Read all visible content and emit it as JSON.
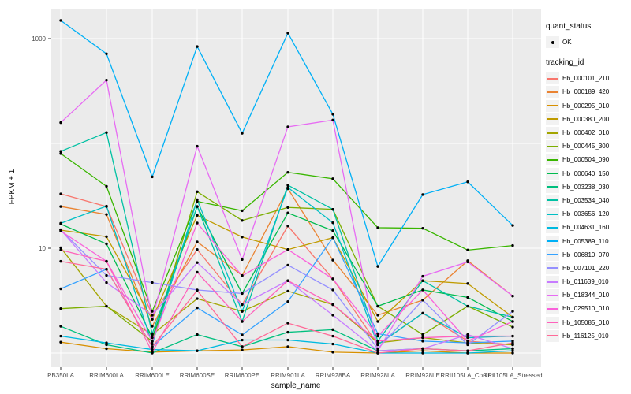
{
  "figure": {
    "panel_background": "#EBEBEB",
    "gridline_color": "#FFFFFF",
    "tick_color": "#333333",
    "axis_text_color": "#4D4D4D",
    "point_color": "#000000"
  },
  "y_axis": {
    "title": "FPKM + 1",
    "ticks": [
      {
        "label": "1000",
        "value": 1000
      },
      {
        "label": "10",
        "value": 10
      }
    ]
  },
  "x_axis": {
    "title": "sample_name"
  },
  "legend": {
    "quant_status": {
      "title": "quant_status",
      "items": [
        {
          "label": "OK",
          "symbol": "black-point"
        }
      ]
    },
    "tracking_id_title": "tracking_id"
  },
  "chart_data": {
    "type": "line",
    "title": "",
    "xlabel": "sample_name",
    "ylabel": "FPKM + 1",
    "yscale": "log10",
    "ybreaks": [
      10,
      1000
    ],
    "ylim": [
      1,
      1600
    ],
    "grid": true,
    "legend_position": "right",
    "point_marker": "small black point (quant_status = OK)",
    "categories": [
      "PB350LA",
      "RRIM600LA",
      "RRIM600LE",
      "RRIM600SE",
      "RRIM600PE",
      "RRIM901LA",
      "RRIM928BA",
      "RRIM928LA",
      "RRIM928LE",
      "RRII105LA_Control",
      "RRII105LA_Stressed"
    ],
    "series": [
      {
        "name": "Hb_000101_210",
        "color": "#F8766D",
        "values": [
          33,
          25,
          2.3,
          9.7,
          2.9,
          16.3,
          5.1,
          1.2,
          2.4,
          1.3,
          1.2
        ]
      },
      {
        "name": "Hb_000189_420",
        "color": "#EA8331",
        "values": [
          25,
          21,
          1.8,
          11.5,
          5.5,
          37,
          7.7,
          2.3,
          3.2,
          7.6,
          3.5
        ]
      },
      {
        "name": "Hb_000295_010",
        "color": "#D89000",
        "values": [
          1.27,
          1.1,
          1.02,
          1.05,
          1.07,
          1.15,
          1.02,
          1.0,
          1.05,
          1.0,
          1.0
        ]
      },
      {
        "name": "Hb_000380_200",
        "color": "#C09B00",
        "values": [
          14.9,
          12.9,
          2.1,
          20.6,
          12.8,
          9.7,
          12.6,
          2.0,
          4.9,
          4.6,
          2.2
        ]
      },
      {
        "name": "Hb_000402_010",
        "color": "#A3A500",
        "values": [
          10.1,
          2.8,
          1.5,
          3.3,
          2.5,
          3.9,
          2.9,
          1.25,
          1.4,
          1.25,
          1.2
        ]
      },
      {
        "name": "Hb_000445_300",
        "color": "#7CAE00",
        "values": [
          2.65,
          2.8,
          1.29,
          34.6,
          18.4,
          24.5,
          23.5,
          2.8,
          1.5,
          2.8,
          1.77
        ]
      },
      {
        "name": "Hb_000504_090",
        "color": "#39B600",
        "values": [
          80,
          39,
          2.5,
          28,
          22.8,
          53,
          46,
          15.7,
          15.5,
          9.6,
          10.6
        ]
      },
      {
        "name": "Hb_000640_150",
        "color": "#00BB4E",
        "values": [
          17,
          11,
          1.4,
          25,
          3.7,
          21.7,
          14.7,
          2.8,
          4.0,
          3.4,
          2.0
        ]
      },
      {
        "name": "Hb_003238_030",
        "color": "#00BF7D",
        "values": [
          1.8,
          1.2,
          1.0,
          1.5,
          1.15,
          1.58,
          1.67,
          1.05,
          1.1,
          1.05,
          1.1
        ]
      },
      {
        "name": "Hb_003534_040",
        "color": "#00C1A3",
        "values": [
          84,
          127,
          1.53,
          25,
          2.0,
          40,
          23.5,
          1.3,
          4.9,
          2.8,
          2.2
        ]
      },
      {
        "name": "Hb_003656_120",
        "color": "#00BFC4",
        "values": [
          17.3,
          25.2,
          1.22,
          29,
          2.5,
          38,
          17.5,
          1.2,
          2.4,
          1.4,
          1.45
        ]
      },
      {
        "name": "Hb_004631_160",
        "color": "#00BAE0",
        "values": [
          1.45,
          1.25,
          1.08,
          1.05,
          1.33,
          1.33,
          1.22,
          1.0,
          1.0,
          1.0,
          1.05
        ]
      },
      {
        "name": "Hb_005389_110",
        "color": "#00B0F6",
        "values": [
          1490,
          716,
          48,
          840,
          125,
          1130,
          190,
          6.7,
          32.5,
          43,
          16.5
        ]
      },
      {
        "name": "Hb_006810_070",
        "color": "#35A2FF",
        "values": [
          4.1,
          6.3,
          1.15,
          2.7,
          1.49,
          3.1,
          12.6,
          1.53,
          1.3,
          1.25,
          1.3
        ]
      },
      {
        "name": "Hb_007101_220",
        "color": "#9590FF",
        "values": [
          15,
          5.5,
          4.7,
          4.0,
          3.7,
          6.9,
          4.0,
          1.1,
          3.2,
          1.2,
          2.5
        ]
      },
      {
        "name": "Hb_011639_010",
        "color": "#C77CFF",
        "values": [
          15,
          4.7,
          2.3,
          7.3,
          2.9,
          4.9,
          2.3,
          1.05,
          1.1,
          1.5,
          1.1
        ]
      },
      {
        "name": "Hb_018344_010",
        "color": "#E76BF3",
        "values": [
          158,
          402,
          2.1,
          94,
          7.8,
          144,
          167,
          1.05,
          5.4,
          7.4,
          3.5
        ]
      },
      {
        "name": "Hb_029510_010",
        "color": "#FA62DB",
        "values": [
          14.6,
          7.5,
          1.29,
          17.4,
          5.45,
          9.7,
          5.1,
          1.45,
          4.0,
          1.3,
          2.0
        ]
      },
      {
        "name": "Hb_105085_010",
        "color": "#FF62BC",
        "values": [
          9.6,
          7.5,
          1.02,
          5.9,
          2.0,
          4.9,
          2.9,
          1.3,
          1.4,
          1.45,
          1.45
        ]
      },
      {
        "name": "Hb_116125_010",
        "color": "#FF6A98",
        "values": [
          7.5,
          6.3,
          1.15,
          3.96,
          1.15,
          1.93,
          1.45,
          1.0,
          1.1,
          1.05,
          1.25
        ]
      }
    ]
  }
}
